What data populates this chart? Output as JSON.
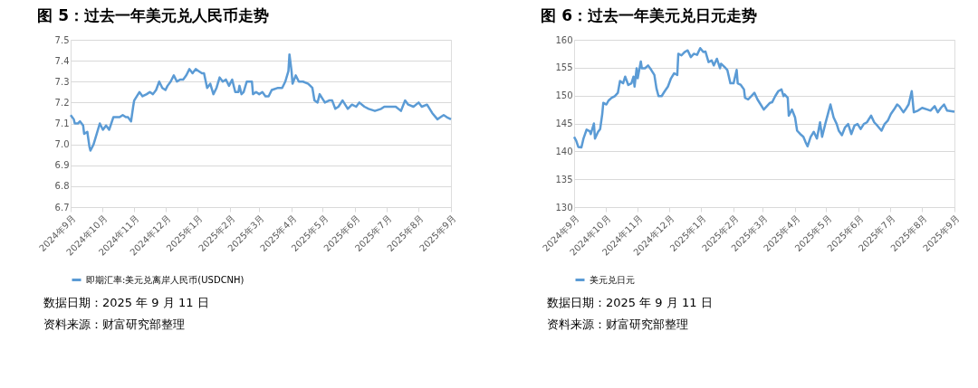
{
  "chart_data": [
    {
      "type": "line",
      "title": "图 5：过去一年美元兑人民币走势",
      "x": [
        "2024-09-11",
        "2024-09-14",
        "2024-09-15",
        "2024-09-18",
        "2024-09-20",
        "2024-09-23",
        "2024-09-24",
        "2024-09-27",
        "2024-09-29",
        "2024-09-30",
        "2024-10-03",
        "2024-10-06",
        "2024-10-09",
        "2024-10-12",
        "2024-10-15",
        "2024-10-18",
        "2024-10-20",
        "2024-10-22",
        "2024-10-25",
        "2024-10-28",
        "2024-10-31",
        "2024-11-03",
        "2024-11-05",
        "2024-11-08",
        "2024-11-10",
        "2024-11-11",
        "2024-11-16",
        "2024-11-19",
        "2024-11-23",
        "2024-11-26",
        "2024-11-29",
        "2024-12-02",
        "2024-12-05",
        "2024-12-08",
        "2024-12-11",
        "2024-12-13",
        "2024-12-16",
        "2024-12-19",
        "2024-12-22",
        "2024-12-25",
        "2024-12-28",
        "2024-12-31",
        "2025-01-03",
        "2025-01-06",
        "2025-01-09",
        "2025-01-12",
        "2025-01-15",
        "2025-01-17",
        "2025-01-20",
        "2025-01-23",
        "2025-01-26",
        "2025-01-29",
        "2025-02-01",
        "2025-02-04",
        "2025-02-07",
        "2025-02-10",
        "2025-02-13",
        "2025-02-16",
        "2025-02-19",
        "2025-02-20",
        "2025-02-22",
        "2025-02-24",
        "2025-02-27",
        "2025-03-04",
        "2025-03-05",
        "2025-03-08",
        "2025-03-11",
        "2025-03-14",
        "2025-03-17",
        "2025-03-20",
        "2025-03-23",
        "2025-03-29",
        "2025-04-02",
        "2025-04-05",
        "2025-04-08",
        "2025-04-09",
        "2025-04-11",
        "2025-04-12",
        "2025-04-15",
        "2025-04-18",
        "2025-04-22",
        "2025-04-27",
        "2025-05-01",
        "2025-05-03",
        "2025-05-06",
        "2025-05-08",
        "2025-05-13",
        "2025-05-17",
        "2025-05-20",
        "2025-05-23",
        "2025-05-26",
        "2025-05-30",
        "2025-06-04",
        "2025-06-08",
        "2025-06-12",
        "2025-06-15",
        "2025-06-20",
        "2025-06-24",
        "2025-06-30",
        "2025-07-06",
        "2025-07-09",
        "2025-07-15",
        "2025-07-20",
        "2025-07-25",
        "2025-07-29",
        "2025-08-01",
        "2025-08-06",
        "2025-08-11",
        "2025-08-14",
        "2025-08-19",
        "2025-08-24",
        "2025-08-29",
        "2025-09-01",
        "2025-09-04",
        "2025-09-07",
        "2025-09-11"
      ],
      "series": [
        {
          "name": "即期汇率:美元兑离岸人民币(USDCNH)",
          "color": "#5b9bd5",
          "values": [
            7.14,
            7.12,
            7.1,
            7.1,
            7.11,
            7.09,
            7.05,
            7.06,
            6.99,
            6.97,
            7.0,
            7.05,
            7.1,
            7.07,
            7.09,
            7.07,
            7.1,
            7.13,
            7.13,
            7.13,
            7.14,
            7.13,
            7.13,
            7.11,
            7.18,
            7.21,
            7.25,
            7.23,
            7.24,
            7.25,
            7.24,
            7.26,
            7.3,
            7.27,
            7.26,
            7.28,
            7.3,
            7.33,
            7.3,
            7.31,
            7.31,
            7.33,
            7.36,
            7.34,
            7.36,
            7.35,
            7.34,
            7.34,
            7.27,
            7.29,
            7.24,
            7.27,
            7.32,
            7.3,
            7.31,
            7.28,
            7.31,
            7.25,
            7.25,
            7.28,
            7.24,
            7.25,
            7.3,
            7.3,
            7.24,
            7.25,
            7.24,
            7.25,
            7.23,
            7.23,
            7.26,
            7.27,
            7.27,
            7.3,
            7.35,
            7.43,
            7.35,
            7.29,
            7.33,
            7.3,
            7.3,
            7.29,
            7.27,
            7.21,
            7.2,
            7.24,
            7.2,
            7.21,
            7.21,
            7.17,
            7.18,
            7.21,
            7.17,
            7.19,
            7.18,
            7.2,
            7.18,
            7.17,
            7.16,
            7.17,
            7.18,
            7.18,
            7.18,
            7.16,
            7.21,
            7.19,
            7.18,
            7.2,
            7.18,
            7.19,
            7.15,
            7.12,
            7.13,
            7.14,
            7.13,
            7.12
          ]
        }
      ],
      "xlim": [
        "2024-09-11",
        "2025-09-11"
      ],
      "xticks": [
        {
          "value": "2024-09-11",
          "label": "2024年9月"
        },
        {
          "value": "2024-10-11",
          "label": "2024年10月"
        },
        {
          "value": "2024-11-11",
          "label": "2024年11月"
        },
        {
          "value": "2024-12-11",
          "label": "2024年12月"
        },
        {
          "value": "2025-01-11",
          "label": "2025年1月"
        },
        {
          "value": "2025-02-11",
          "label": "2025年2月"
        },
        {
          "value": "2025-03-11",
          "label": "2025年3月"
        },
        {
          "value": "2025-04-11",
          "label": "2025年4月"
        },
        {
          "value": "2025-05-11",
          "label": "2025年5月"
        },
        {
          "value": "2025-06-11",
          "label": "2025年6月"
        },
        {
          "value": "2025-07-11",
          "label": "2025年7月"
        },
        {
          "value": "2025-08-11",
          "label": "2025年8月"
        },
        {
          "value": "2025-09-11",
          "label": "2025年9月"
        }
      ],
      "ylim": [
        6.7,
        7.5
      ],
      "yticks": [
        6.7,
        6.8,
        6.9,
        {
          "value": 7,
          "label": "7.0"
        },
        7.1,
        7.2,
        7.3,
        7.4,
        7.5
      ],
      "grid": "y",
      "legend": "bottom",
      "annotations": [
        "数据日期：2025 年 9 月 11 日",
        "资料来源：财富研究部整理"
      ]
    },
    {
      "type": "line",
      "title": "图 6：过去一年美元兑日元走势",
      "x": [
        "2024-09-11",
        "2024-09-13",
        "2024-09-15",
        "2024-09-18",
        "2024-09-20",
        "2024-09-23",
        "2024-09-26",
        "2024-09-27",
        "2024-09-30",
        "2024-10-01",
        "2024-10-04",
        "2024-10-06",
        "2024-10-08",
        "2024-10-09",
        "2024-10-12",
        "2024-10-14",
        "2024-10-17",
        "2024-10-20",
        "2024-10-23",
        "2024-10-25",
        "2024-10-28",
        "2024-10-30",
        "2024-11-02",
        "2024-11-05",
        "2024-11-07",
        "2024-11-08",
        "2024-11-10",
        "2024-11-11",
        "2024-11-14",
        "2024-11-15",
        "2024-11-18",
        "2024-11-21",
        "2024-11-24",
        "2024-11-27",
        "2024-11-29",
        "2024-12-01",
        "2024-12-04",
        "2024-12-07",
        "2024-12-10",
        "2024-12-13",
        "2024-12-16",
        "2024-12-19",
        "2024-12-20",
        "2024-12-23",
        "2024-12-26",
        "2024-12-29",
        "2025-01-01",
        "2025-01-04",
        "2025-01-07",
        "2025-01-10",
        "2025-01-13",
        "2025-01-15",
        "2025-01-18",
        "2025-01-21",
        "2025-01-23",
        "2025-01-26",
        "2025-01-29",
        "2025-01-30",
        "2025-02-02",
        "2025-02-05",
        "2025-02-08",
        "2025-02-11",
        "2025-02-14",
        "2025-02-15",
        "2025-02-18",
        "2025-02-21",
        "2025-02-22",
        "2025-02-25",
        "2025-02-28",
        "2025-03-03",
        "2025-03-06",
        "2025-03-09",
        "2025-03-12",
        "2025-03-15",
        "2025-03-18",
        "2025-03-20",
        "2025-03-23",
        "2025-03-26",
        "2025-03-29",
        "2025-03-31",
        "2025-04-01",
        "2025-04-04",
        "2025-04-05",
        "2025-04-08",
        "2025-04-11",
        "2025-04-13",
        "2025-04-16",
        "2025-04-19",
        "2025-04-21",
        "2025-04-23",
        "2025-04-26",
        "2025-04-29",
        "2025-05-02",
        "2025-05-05",
        "2025-05-07",
        "2025-05-10",
        "2025-05-13",
        "2025-05-15",
        "2025-05-18",
        "2025-05-21",
        "2025-05-23",
        "2025-05-26",
        "2025-05-29",
        "2025-06-01",
        "2025-06-04",
        "2025-06-07",
        "2025-06-10",
        "2025-06-13",
        "2025-06-16",
        "2025-06-19",
        "2025-06-23",
        "2025-06-26",
        "2025-06-29",
        "2025-07-03",
        "2025-07-06",
        "2025-07-09",
        "2025-07-12",
        "2025-07-15",
        "2025-07-18",
        "2025-07-20",
        "2025-07-24",
        "2025-07-26",
        "2025-07-29",
        "2025-08-01",
        "2025-08-03",
        "2025-08-07",
        "2025-08-11",
        "2025-08-16",
        "2025-08-19",
        "2025-08-23",
        "2025-08-26",
        "2025-08-29",
        "2025-09-01",
        "2025-09-04",
        "2025-09-11"
      ],
      "series": [
        {
          "name": "美元兑日元",
          "color": "#5b9bd5",
          "values": [
            142.6,
            141.9,
            140.8,
            140.7,
            142.3,
            143.9,
            143.6,
            143.1,
            145.0,
            142.3,
            143.5,
            144.0,
            146.7,
            148.7,
            148.4,
            149.1,
            149.6,
            149.9,
            150.5,
            152.6,
            152.2,
            153.4,
            151.9,
            152.2,
            153.4,
            151.6,
            154.9,
            153.1,
            156.1,
            154.9,
            154.9,
            155.4,
            154.6,
            153.7,
            151.3,
            149.9,
            149.9,
            150.8,
            151.6,
            153.1,
            154.0,
            153.7,
            157.5,
            157.2,
            157.8,
            158.1,
            156.9,
            157.5,
            157.3,
            158.5,
            157.8,
            157.9,
            156.0,
            156.3,
            155.4,
            156.6,
            154.9,
            155.7,
            155.2,
            154.6,
            152.2,
            152.2,
            154.6,
            152.2,
            151.9,
            151.1,
            149.6,
            149.3,
            149.9,
            150.5,
            149.3,
            148.4,
            147.5,
            148.1,
            148.7,
            148.8,
            149.9,
            150.8,
            151.1,
            149.9,
            150.2,
            149.6,
            146.4,
            147.5,
            146.1,
            143.7,
            143.1,
            142.6,
            141.7,
            140.9,
            142.6,
            143.5,
            142.3,
            145.2,
            142.6,
            144.9,
            147.0,
            148.4,
            146.1,
            144.9,
            143.7,
            142.9,
            144.3,
            144.9,
            143.1,
            144.6,
            144.9,
            144.0,
            144.9,
            145.2,
            146.4,
            145.2,
            144.6,
            143.7,
            144.9,
            145.5,
            146.7,
            147.5,
            148.4,
            148.1,
            147.0,
            147.5,
            148.4,
            150.8,
            147.0,
            147.3,
            147.8,
            147.5,
            147.3,
            148.1,
            147.0,
            147.8,
            148.4,
            147.3,
            147.1
          ]
        }
      ],
      "xlim": [
        "2024-09-11",
        "2025-09-11"
      ],
      "xticks": [
        {
          "value": "2024-09-11",
          "label": "2024年9月"
        },
        {
          "value": "2024-10-11",
          "label": "2024年10月"
        },
        {
          "value": "2024-11-11",
          "label": "2024年11月"
        },
        {
          "value": "2024-12-11",
          "label": "2024年12月"
        },
        {
          "value": "2025-01-11",
          "label": "2025年1月"
        },
        {
          "value": "2025-02-11",
          "label": "2025年2月"
        },
        {
          "value": "2025-03-11",
          "label": "2025年3月"
        },
        {
          "value": "2025-04-11",
          "label": "2025年4月"
        },
        {
          "value": "2025-05-11",
          "label": "2025年5月"
        },
        {
          "value": "2025-06-11",
          "label": "2025年6月"
        },
        {
          "value": "2025-07-11",
          "label": "2025年7月"
        },
        {
          "value": "2025-08-11",
          "label": "2025年8月"
        },
        {
          "value": "2025-09-11",
          "label": "2025年9月"
        }
      ],
      "ylim": [
        130,
        160
      ],
      "yticks": [
        130,
        135,
        140,
        145,
        150,
        155,
        160
      ],
      "grid": "y",
      "legend": "bottom",
      "annotations": [
        "数据日期：2025 年 9 月 11 日",
        "资料来源：财富研究部整理"
      ]
    }
  ]
}
